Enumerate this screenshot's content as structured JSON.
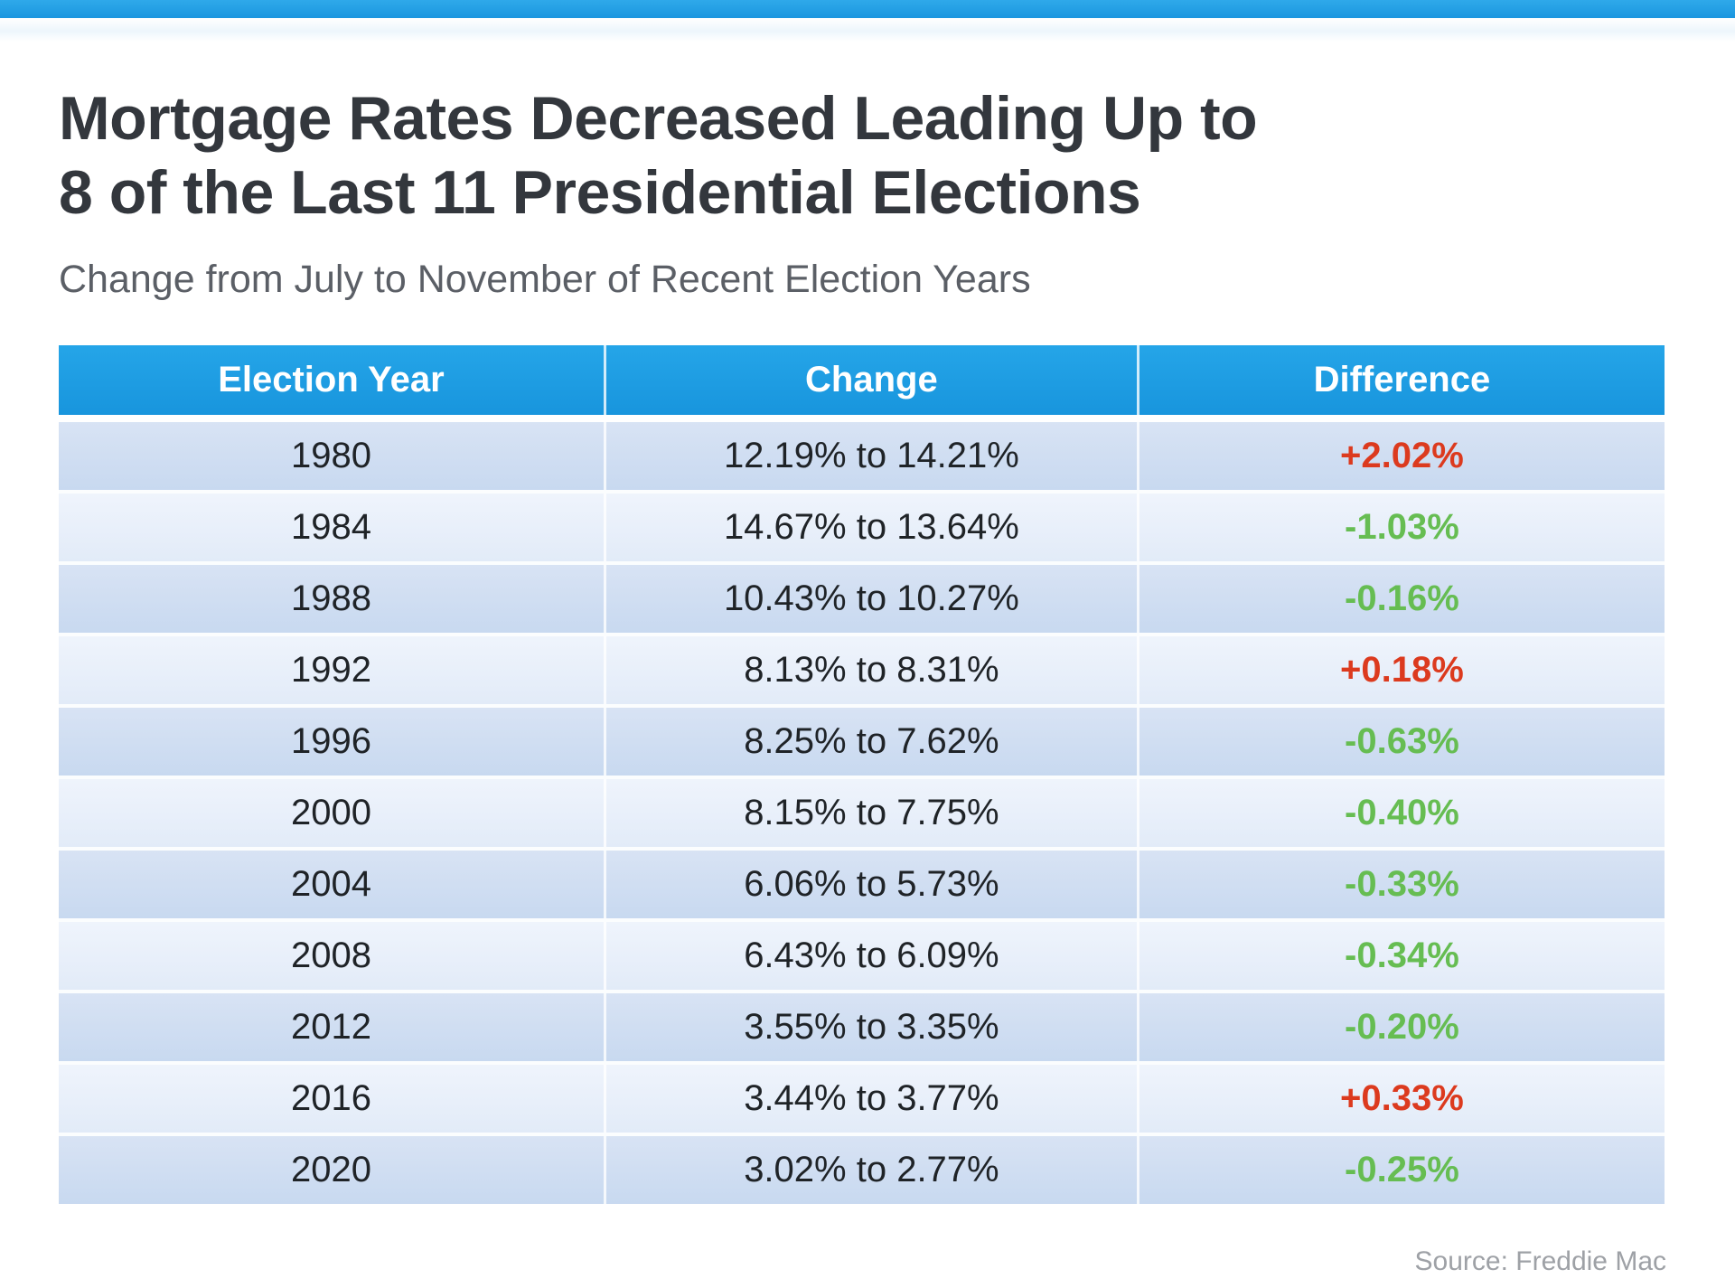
{
  "header": {
    "title_line1": "Mortgage Rates Decreased Leading Up to",
    "title_line2": "8 of the Last 11 Presidential Elections",
    "subtitle": "Change from July to November of Recent Election Years"
  },
  "footer": {
    "source": "Source: Freddie Mac"
  },
  "colors": {
    "accent_blue": "#1C9DE2",
    "row_dark": "#CBDCF1",
    "row_light": "#E7EEFA",
    "increase_red": "#DC3A1E",
    "decrease_green": "#66BD52"
  },
  "chart_data": {
    "type": "table",
    "title": "Mortgage Rates Decreased Leading Up to 8 of the Last 11 Presidential Elections",
    "subtitle": "Change from July to November of Recent Election Years",
    "source": "Freddie Mac",
    "columns": [
      "Election Year",
      "Change",
      "Difference"
    ],
    "rows": [
      {
        "year": "1980",
        "change": "12.19% to 14.21%",
        "difference": "+2.02%",
        "direction": "increase"
      },
      {
        "year": "1984",
        "change": "14.67% to 13.64%",
        "difference": "-1.03%",
        "direction": "decrease"
      },
      {
        "year": "1988",
        "change": "10.43% to 10.27%",
        "difference": "-0.16%",
        "direction": "decrease"
      },
      {
        "year": "1992",
        "change": "8.13% to 8.31%",
        "difference": "+0.18%",
        "direction": "increase"
      },
      {
        "year": "1996",
        "change": "8.25% to 7.62%",
        "difference": "-0.63%",
        "direction": "decrease"
      },
      {
        "year": "2000",
        "change": "8.15% to 7.75%",
        "difference": "-0.40%",
        "direction": "decrease"
      },
      {
        "year": "2004",
        "change": "6.06% to 5.73%",
        "difference": "-0.33%",
        "direction": "decrease"
      },
      {
        "year": "2008",
        "change": "6.43% to 6.09%",
        "difference": "-0.34%",
        "direction": "decrease"
      },
      {
        "year": "2012",
        "change": "3.55% to 3.35%",
        "difference": "-0.20%",
        "direction": "decrease"
      },
      {
        "year": "2016",
        "change": "3.44% to 3.77%",
        "difference": "+0.33%",
        "direction": "increase"
      },
      {
        "year": "2020",
        "change": "3.02% to 2.77%",
        "difference": "-0.25%",
        "direction": "decrease"
      }
    ]
  }
}
